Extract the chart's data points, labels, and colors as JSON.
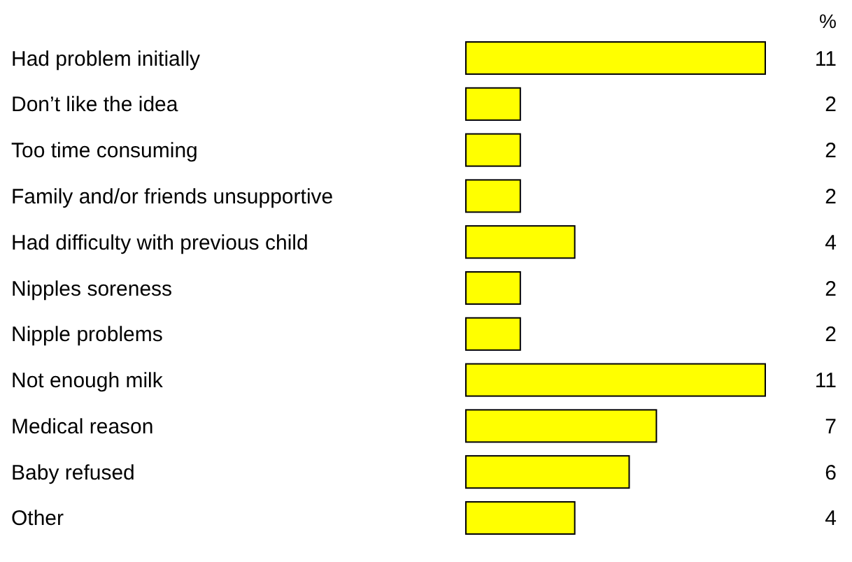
{
  "chart_data": {
    "type": "bar",
    "orientation": "horizontal",
    "xlabel": "%",
    "categories": [
      "Had problem initially",
      "Don’t like the idea",
      "Too time consuming",
      "Family and/or friends unsupportive",
      "Had difficulty with previous child",
      "Nipples soreness",
      "Nipple problems",
      "Not enough milk",
      "Medical reason",
      "Baby refused",
      "Other"
    ],
    "values": [
      11,
      2,
      2,
      2,
      4,
      2,
      2,
      11,
      7,
      6,
      4
    ],
    "color": "#ffff00",
    "data_labels": true
  }
}
